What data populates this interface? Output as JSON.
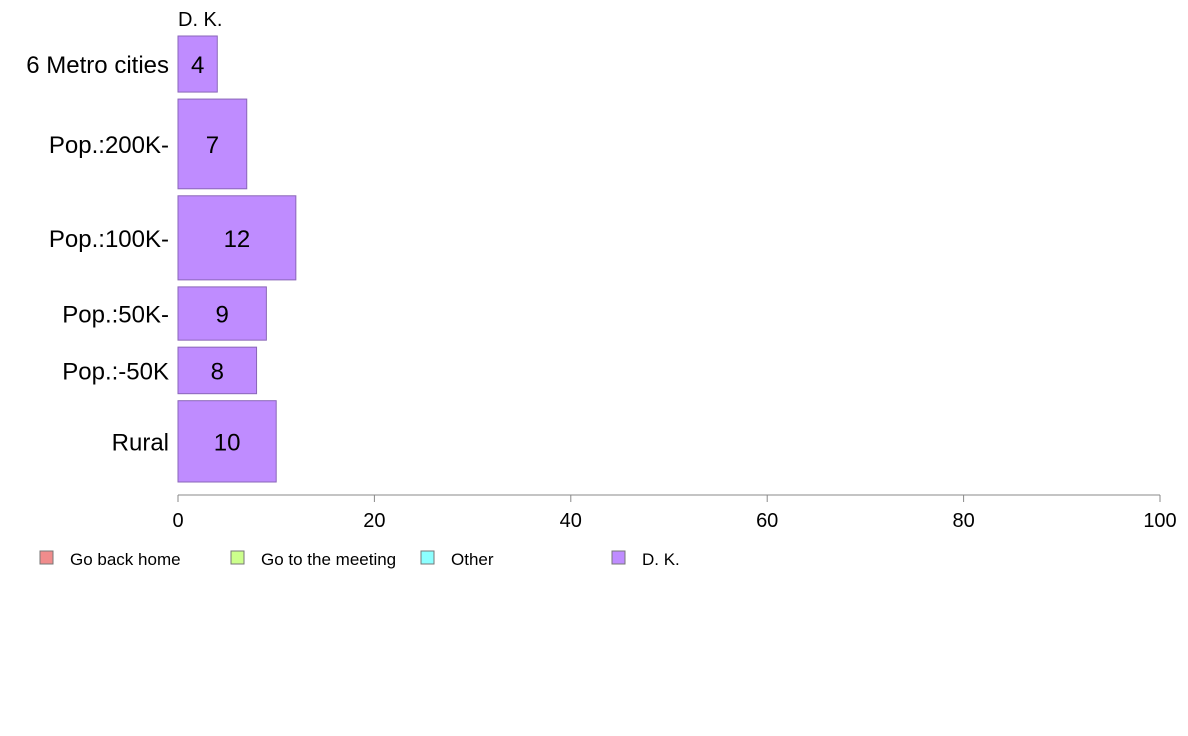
{
  "chart_data": {
    "type": "bar",
    "orientation": "horizontal",
    "series_title": "D. K.",
    "categories": [
      "6 Metro cities",
      "Pop.:200K-",
      "Pop.:100K-",
      "Pop.:50K-",
      "Pop.:-50K",
      "Rural"
    ],
    "series": [
      {
        "name": "D. K.",
        "values": [
          4,
          7,
          12,
          9,
          8,
          10
        ],
        "color": "#bf8cff"
      }
    ],
    "bar_weights": [
      1.0,
      1.6,
      1.5,
      0.95,
      0.83,
      1.45
    ],
    "xlim": [
      0,
      100
    ],
    "xticks": [
      0,
      20,
      40,
      60,
      80,
      100
    ],
    "grid": false,
    "legend": {
      "placement": "bottom",
      "entries": [
        {
          "label": "Go back home",
          "color": "#f08c8c"
        },
        {
          "label": "Go to the meeting",
          "color": "#ccff8c"
        },
        {
          "label": "Other",
          "color": "#8cffff"
        },
        {
          "label": "D. K.",
          "color": "#bf8cff"
        }
      ]
    }
  }
}
